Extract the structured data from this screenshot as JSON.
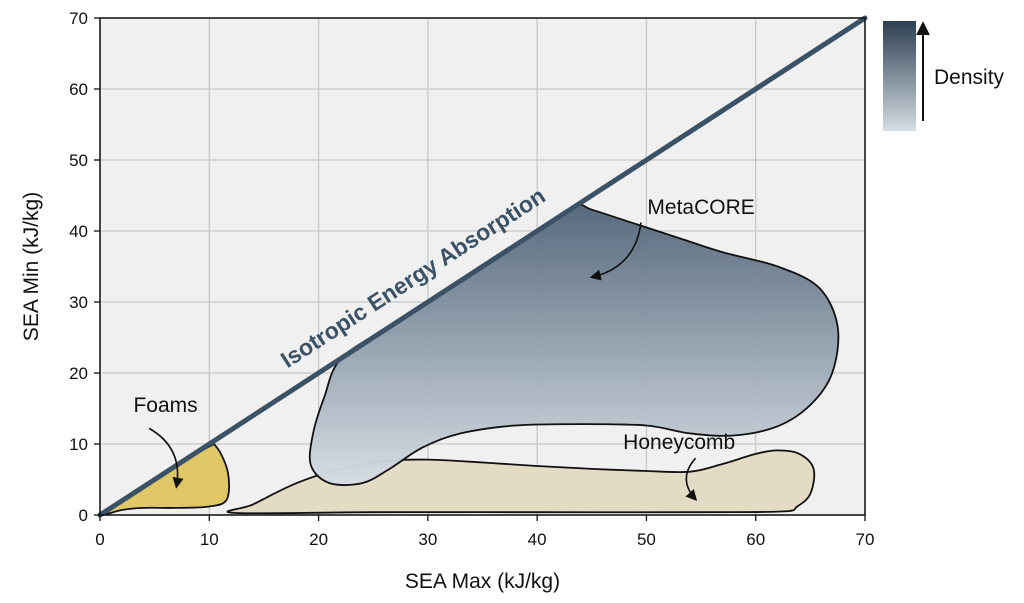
{
  "chart_data": {
    "type": "area",
    "xlabel": "SEA Max (kJ/kg)",
    "ylabel": "SEA Min (kJ/kg)",
    "xlim": [
      0,
      70
    ],
    "ylim": [
      0,
      70
    ],
    "xticks": [
      "0",
      "10",
      "20",
      "30",
      "40",
      "50",
      "60",
      "70"
    ],
    "yticks": [
      "0",
      "10",
      "20",
      "30",
      "40",
      "50",
      "60",
      "70"
    ],
    "grid": true,
    "diagonal": {
      "label": "Isotropic Energy Absorption",
      "from": [
        0,
        0
      ],
      "to": [
        70,
        70
      ],
      "color": "#3b5266"
    },
    "regions": [
      {
        "name": "Foams",
        "color": "#e0c765",
        "label_at": [
          6,
          14.5
        ],
        "arrow_from": [
          4.5,
          12.2
        ],
        "arrow_to": [
          7,
          4
        ],
        "boundary": [
          [
            0,
            0
          ],
          [
            2,
            0.7
          ],
          [
            4,
            1
          ],
          [
            7,
            1
          ],
          [
            10,
            1.2
          ],
          [
            11.6,
            2.2
          ],
          [
            11.7,
            6
          ],
          [
            10.7,
            9.5
          ],
          [
            9.8,
            9.5
          ],
          [
            6,
            5.8
          ],
          [
            3,
            2.8
          ],
          [
            0,
            0
          ]
        ]
      },
      {
        "name": "Honeycomb",
        "color": "#e3dbc4",
        "label_at": [
          53,
          9.3
        ],
        "arrow_from": [
          54.5,
          8
        ],
        "arrow_to": [
          54.5,
          2.2
        ],
        "boundary": [
          [
            12.3,
            0.3
          ],
          [
            14,
            1.5
          ],
          [
            18,
            4.5
          ],
          [
            22,
            6.5
          ],
          [
            26,
            7.6
          ],
          [
            30,
            7.8
          ],
          [
            35,
            7.4
          ],
          [
            40,
            6.9
          ],
          [
            45,
            6.5
          ],
          [
            50,
            6.2
          ],
          [
            54,
            6.1
          ],
          [
            57,
            7.2
          ],
          [
            60,
            8.6
          ],
          [
            62,
            9.1
          ],
          [
            64,
            8.6
          ],
          [
            65.3,
            6.5
          ],
          [
            65,
            3
          ],
          [
            63.8,
            1.2
          ],
          [
            62.5,
            0.5
          ],
          [
            55,
            0.4
          ],
          [
            40,
            0.4
          ],
          [
            25,
            0.4
          ],
          [
            12.3,
            0.3
          ]
        ]
      },
      {
        "name": "MetaCORE",
        "color_top": "#52667a",
        "color_bottom": "#d6dde4",
        "label_at": [
          55,
          42.4
        ],
        "arrow_from": [
          49.5,
          41.2
        ],
        "arrow_to": [
          45,
          33.5
        ],
        "boundary": [
          [
            22.1,
            22.1
          ],
          [
            27,
            27
          ],
          [
            32,
            32
          ],
          [
            37,
            37
          ],
          [
            40,
            40
          ],
          [
            43.5,
            43.5
          ],
          [
            45,
            43
          ],
          [
            49,
            41
          ],
          [
            53,
            39
          ],
          [
            57,
            37
          ],
          [
            62,
            35
          ],
          [
            65.8,
            32
          ],
          [
            67.5,
            26.5
          ],
          [
            67,
            20
          ],
          [
            65,
            15.5
          ],
          [
            62,
            12.5
          ],
          [
            58,
            11.2
          ],
          [
            54,
            11.5
          ],
          [
            50,
            12.6
          ],
          [
            44,
            12.8
          ],
          [
            38,
            12.6
          ],
          [
            33,
            11.5
          ],
          [
            29.5,
            9.5
          ],
          [
            26.5,
            6.5
          ],
          [
            24,
            4.5
          ],
          [
            21,
            4.5
          ],
          [
            19.3,
            7
          ],
          [
            19.5,
            11.5
          ],
          [
            20.5,
            16.5
          ],
          [
            22.1,
            22.1
          ]
        ]
      }
    ],
    "legend": {
      "label": "Density",
      "position": "right",
      "color_top": "#2c3e50",
      "color_bottom": "#d5dde4"
    }
  }
}
